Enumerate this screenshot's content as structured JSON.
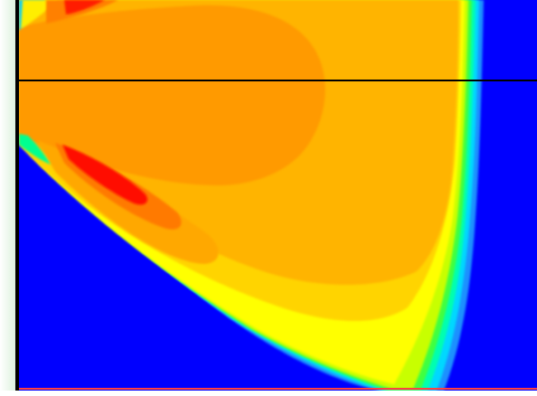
{
  "figure": {
    "type": "contour-field",
    "colormap": [
      "#0000ff",
      "#0080ff",
      "#00e0ff",
      "#00ffa0",
      "#40ff40",
      "#c0ff00",
      "#ffff00",
      "#ffd000",
      "#ffb000",
      "#ff9400",
      "#ff6000",
      "#ff0000"
    ],
    "background_color": "#0000ff",
    "horizontal_line_color": "#000000",
    "bottom_line_color": "#ff4040"
  }
}
